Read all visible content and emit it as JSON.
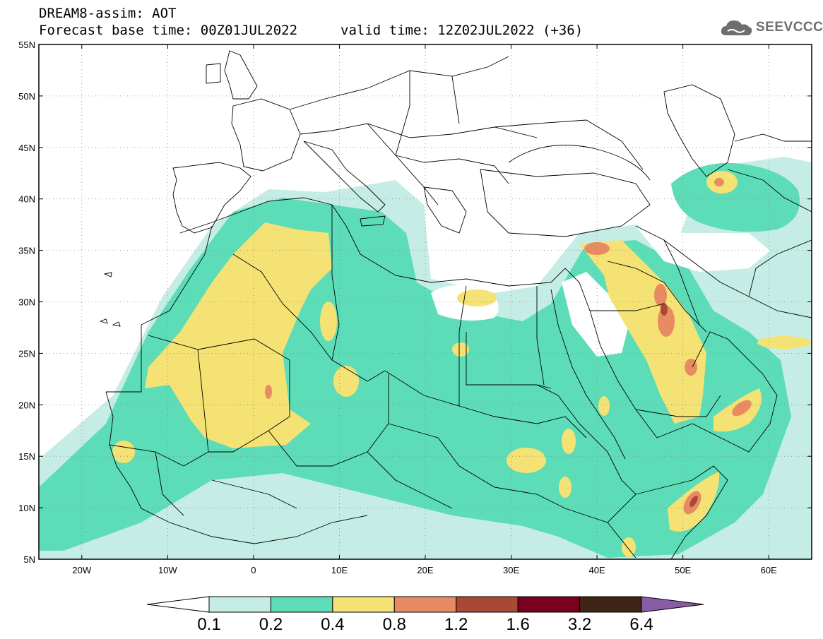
{
  "header": {
    "title": "DREAM8-assim: AOT",
    "forecast_base": "Forecast base time: 00Z01JUL2022",
    "valid_time": "valid time: 12Z02JUL2022 (+36)"
  },
  "brand": {
    "name": "SEEVCCC",
    "icon": "cloud-logo-icon"
  },
  "map": {
    "extent": {
      "lon": [
        -25,
        65
      ],
      "lat": [
        5,
        55
      ]
    },
    "lat_ticks": [
      {
        "value": 55,
        "label": "55N"
      },
      {
        "value": 50,
        "label": "50N"
      },
      {
        "value": 45,
        "label": "45N"
      },
      {
        "value": 40,
        "label": "40N"
      },
      {
        "value": 35,
        "label": "35N"
      },
      {
        "value": 30,
        "label": "30N"
      },
      {
        "value": 25,
        "label": "25N"
      },
      {
        "value": 20,
        "label": "20N"
      },
      {
        "value": 15,
        "label": "15N"
      },
      {
        "value": 10,
        "label": "10N"
      },
      {
        "value": 5,
        "label": "5N"
      }
    ],
    "lon_ticks": [
      {
        "value": -20,
        "label": "20W"
      },
      {
        "value": -10,
        "label": "10W"
      },
      {
        "value": 0,
        "label": "0"
      },
      {
        "value": 10,
        "label": "10E"
      },
      {
        "value": 20,
        "label": "20E"
      },
      {
        "value": 30,
        "label": "30E"
      },
      {
        "value": 40,
        "label": "40E"
      },
      {
        "value": 50,
        "label": "50E"
      },
      {
        "value": 60,
        "label": "60E"
      }
    ],
    "gridlines": "dotted"
  },
  "colorbar": {
    "labels": [
      "0.1",
      "0.2",
      "0.4",
      "0.8",
      "1.2",
      "1.6",
      "3.2",
      "6.4"
    ],
    "colors": [
      "#ffffff",
      "#c6ede5",
      "#5cddb8",
      "#f5e274",
      "#e88b62",
      "#a94934",
      "#7a0020",
      "#3d2414",
      "#8a5ca6"
    ]
  }
}
